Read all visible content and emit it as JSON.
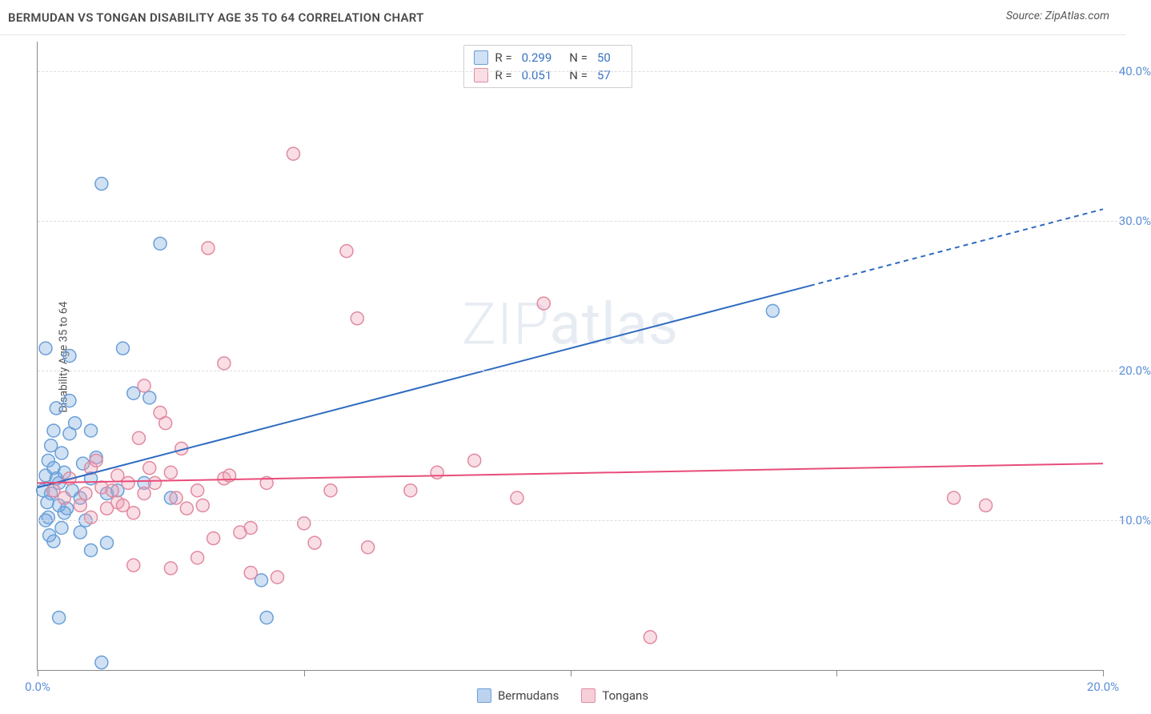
{
  "title": "BERMUDAN VS TONGAN DISABILITY AGE 35 TO 64 CORRELATION CHART",
  "source": "Source: ZipAtlas.com",
  "ylabel": "Disability Age 35 to 64",
  "watermark": "ZIPatlas",
  "chart": {
    "type": "scatter",
    "xlim": [
      0,
      20
    ],
    "ylim": [
      0,
      42
    ],
    "xticks": [
      0,
      5,
      10,
      15,
      20
    ],
    "xtick_labels": {
      "0": "0.0%",
      "20": "20.0%"
    },
    "yticks": [
      10,
      20,
      30,
      40
    ],
    "ytick_labels": [
      "10.0%",
      "20.0%",
      "30.0%",
      "40.0%"
    ],
    "grid_color": "#dddddd",
    "axis_color": "#888888",
    "background": "#ffffff",
    "series": [
      {
        "name": "Bermudans",
        "fill": "rgba(121,168,224,0.35)",
        "stroke": "#6a9fd8",
        "line_color": "#2f6bc0",
        "line_width": 2,
        "marker_r": 8,
        "R": "0.299",
        "N": "50",
        "trend": {
          "x1": 0,
          "y1": 12.2,
          "x2": 20,
          "y2": 30.8,
          "dash_after_x": 14.5
        },
        "points": [
          [
            0.1,
            12.0
          ],
          [
            0.15,
            13.0
          ],
          [
            0.18,
            11.2
          ],
          [
            0.2,
            10.2
          ],
          [
            0.2,
            14.0
          ],
          [
            0.22,
            9.0
          ],
          [
            0.25,
            15.0
          ],
          [
            0.3,
            16.0
          ],
          [
            0.3,
            8.6
          ],
          [
            0.35,
            17.5
          ],
          [
            0.4,
            12.5
          ],
          [
            0.4,
            11.0
          ],
          [
            0.45,
            14.5
          ],
          [
            0.5,
            13.2
          ],
          [
            0.55,
            10.8
          ],
          [
            0.6,
            15.8
          ],
          [
            0.6,
            21.0
          ],
          [
            0.65,
            12.0
          ],
          [
            0.7,
            16.5
          ],
          [
            0.8,
            11.5
          ],
          [
            0.85,
            13.8
          ],
          [
            0.9,
            10.0
          ],
          [
            1.0,
            12.8
          ],
          [
            1.0,
            8.0
          ],
          [
            1.1,
            14.2
          ],
          [
            1.2,
            32.5
          ],
          [
            1.3,
            11.8
          ],
          [
            1.3,
            8.5
          ],
          [
            1.5,
            12.0
          ],
          [
            1.6,
            21.5
          ],
          [
            1.8,
            18.5
          ],
          [
            2.0,
            12.5
          ],
          [
            2.1,
            18.2
          ],
          [
            2.3,
            28.5
          ],
          [
            2.5,
            11.5
          ],
          [
            0.4,
            3.5
          ],
          [
            1.2,
            0.5
          ],
          [
            4.2,
            6.0
          ],
          [
            4.3,
            3.5
          ],
          [
            13.8,
            24.0
          ],
          [
            0.15,
            21.5
          ],
          [
            0.6,
            18.0
          ],
          [
            0.3,
            13.5
          ],
          [
            0.5,
            10.5
          ],
          [
            0.8,
            9.2
          ],
          [
            1.0,
            16.0
          ],
          [
            0.25,
            11.8
          ],
          [
            0.15,
            10.0
          ],
          [
            0.35,
            12.8
          ],
          [
            0.45,
            9.5
          ]
        ]
      },
      {
        "name": "Tongans",
        "fill": "rgba(240,160,180,0.35)",
        "stroke": "#e08aa0",
        "line_color": "#e84c7a",
        "line_width": 2,
        "marker_r": 8,
        "R": "0.051",
        "N": "57",
        "trend": {
          "x1": 0,
          "y1": 12.5,
          "x2": 20,
          "y2": 13.8
        },
        "points": [
          [
            0.3,
            12.0
          ],
          [
            0.5,
            11.5
          ],
          [
            0.6,
            12.8
          ],
          [
            0.8,
            11.0
          ],
          [
            1.0,
            13.5
          ],
          [
            1.0,
            10.2
          ],
          [
            1.2,
            12.2
          ],
          [
            1.3,
            10.8
          ],
          [
            1.5,
            13.0
          ],
          [
            1.5,
            11.2
          ],
          [
            1.7,
            12.5
          ],
          [
            1.8,
            10.5
          ],
          [
            1.8,
            7.0
          ],
          [
            2.0,
            11.8
          ],
          [
            2.0,
            19.0
          ],
          [
            2.2,
            12.5
          ],
          [
            2.3,
            17.2
          ],
          [
            2.5,
            6.8
          ],
          [
            2.5,
            13.2
          ],
          [
            2.7,
            14.8
          ],
          [
            2.8,
            10.8
          ],
          [
            3.0,
            12.0
          ],
          [
            3.0,
            7.5
          ],
          [
            3.2,
            28.2
          ],
          [
            3.3,
            8.8
          ],
          [
            3.5,
            12.8
          ],
          [
            3.5,
            20.5
          ],
          [
            3.8,
            9.2
          ],
          [
            4.0,
            9.5
          ],
          [
            4.0,
            6.5
          ],
          [
            4.3,
            12.5
          ],
          [
            4.5,
            6.2
          ],
          [
            4.8,
            34.5
          ],
          [
            5.0,
            9.8
          ],
          [
            5.2,
            8.5
          ],
          [
            5.5,
            12.0
          ],
          [
            5.8,
            28.0
          ],
          [
            6.0,
            23.5
          ],
          [
            6.2,
            8.2
          ],
          [
            7.0,
            12.0
          ],
          [
            7.5,
            13.2
          ],
          [
            8.2,
            14.0
          ],
          [
            9.0,
            11.5
          ],
          [
            9.5,
            24.5
          ],
          [
            11.5,
            2.2
          ],
          [
            17.2,
            11.5
          ],
          [
            17.8,
            11.0
          ],
          [
            1.1,
            14.0
          ],
          [
            1.4,
            12.0
          ],
          [
            0.9,
            11.8
          ],
          [
            1.6,
            11.0
          ],
          [
            2.1,
            13.5
          ],
          [
            2.6,
            11.5
          ],
          [
            3.1,
            11.0
          ],
          [
            3.6,
            13.0
          ],
          [
            1.9,
            15.5
          ],
          [
            2.4,
            16.5
          ]
        ]
      }
    ]
  },
  "legend_bottom": [
    {
      "label": "Bermudans",
      "fill": "rgba(121,168,224,0.5)",
      "stroke": "#6a9fd8"
    },
    {
      "label": "Tongans",
      "fill": "rgba(240,160,180,0.5)",
      "stroke": "#e08aa0"
    }
  ]
}
